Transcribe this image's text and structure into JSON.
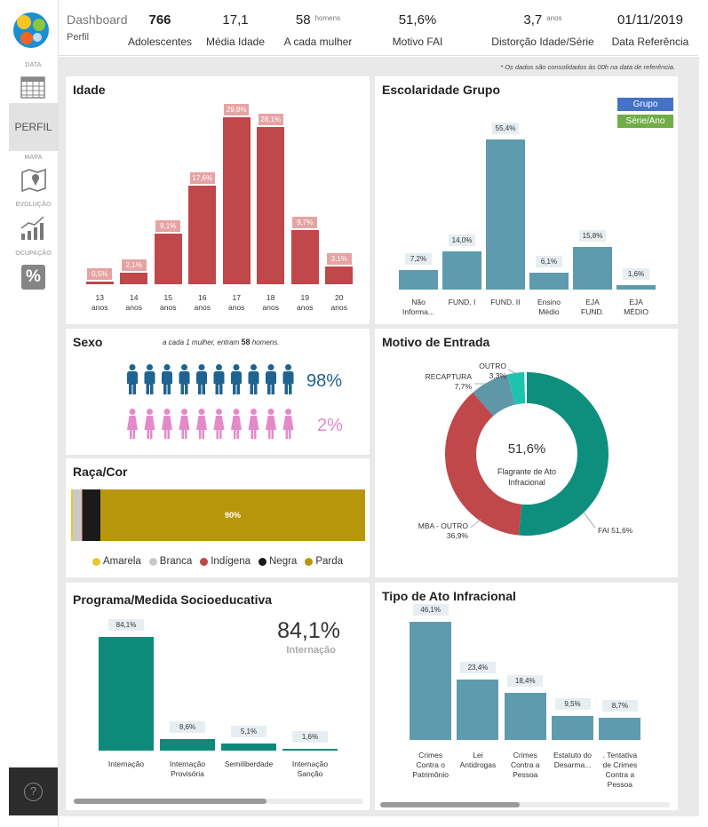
{
  "sidebar": {
    "items": [
      {
        "label": "DATA"
      },
      {
        "label": "PERFIL"
      },
      {
        "label": "MAPA"
      },
      {
        "label": "EVOLUÇÃO"
      },
      {
        "label": "OCUPAÇÃO",
        "icon": "%"
      }
    ],
    "help": "?"
  },
  "header": {
    "title": "Dashboard",
    "subtitle": "Perfil",
    "kpis": [
      {
        "value": "766",
        "label": "Adolescentes"
      },
      {
        "value": "17,1",
        "label": "Média Idade"
      },
      {
        "value": "58",
        "unit": "homens",
        "label": "A cada mulher"
      },
      {
        "value": "51,6%",
        "label": "Motivo FAI"
      },
      {
        "value": "3,7",
        "unit": "anos",
        "label": "Distorção Idade/Série"
      },
      {
        "value": "01/11/2019",
        "label": "Data Referência"
      }
    ]
  },
  "note": "* Os dados são consolidados às 00h na data de referência.",
  "chart_data": [
    {
      "type": "bar",
      "title": "Idade",
      "categories": [
        "13 anos",
        "14 anos",
        "15 anos",
        "16 anos",
        "17 anos",
        "18 anos",
        "19 anos",
        "20 anos"
      ],
      "values": [
        0.5,
        2.1,
        9.1,
        17.6,
        29.8,
        28.1,
        9.7,
        3.1
      ],
      "value_labels": [
        "0,5%",
        "2,1%",
        "9,1%",
        "17,6%",
        "29,8%",
        "28,1%",
        "9,7%",
        "3,1%"
      ],
      "color": "#c0474a"
    },
    {
      "type": "bar",
      "title": "Escolaridade Grupo",
      "categories": [
        "Não Informa...",
        "FUND. I",
        "FUND. II",
        "Ensino Médio",
        "EJA FUND.",
        "EJA MÉDIO"
      ],
      "values": [
        7.2,
        14.0,
        55.4,
        6.1,
        15.8,
        1.6
      ],
      "value_labels": [
        "7,2%",
        "14,0%",
        "55,4%",
        "6,1%",
        "15,8%",
        "1,6%"
      ],
      "color": "#5f9bae",
      "buttons": [
        {
          "label": "Grupo",
          "color": "#4472c4"
        },
        {
          "label": "Série/Ano",
          "color": "#70ad47"
        }
      ]
    },
    {
      "type": "pictogram",
      "title": "Sexo",
      "annotation": {
        "before": "a cada 1 mulher, entram",
        "value": "58",
        "after": "homens."
      },
      "values": [
        98,
        2
      ],
      "value_labels": [
        "98%",
        "2%"
      ],
      "colors": [
        "#1f6391",
        "#e58ac9"
      ]
    },
    {
      "type": "stacked-bar",
      "title": "Raça/Cor",
      "series": [
        {
          "name": "Amarela",
          "color": "#e8c930",
          "values": [
            0.5
          ]
        },
        {
          "name": "Branca",
          "color": "#c9c9c9",
          "values": [
            3
          ]
        },
        {
          "name": "Indígena",
          "color": "#c0474a",
          "values": [
            0.5
          ]
        },
        {
          "name": "Negra",
          "color": "#1a1a1a",
          "values": [
            6
          ]
        },
        {
          "name": "Parda",
          "color": "#b8960c",
          "values": [
            90
          ],
          "value_labels": [
            "90%"
          ]
        }
      ]
    },
    {
      "type": "donut",
      "title": "Motivo de Entrada",
      "categories": [
        "FAI",
        "MBA - OUTRO",
        "RECAPTURA",
        "OUTRO"
      ],
      "values": [
        51.6,
        36.9,
        7.7,
        3.3
      ],
      "value_labels": [
        "51,6%",
        "36,9%",
        "7,7%",
        "3,3%"
      ],
      "colors": [
        "#0e8f7e",
        "#c0474a",
        "#5f96a8",
        "#1ec3b0"
      ],
      "center_label": "Flagrante de Ato Infracional"
    },
    {
      "type": "bar",
      "title": "Programa/Medida Socioeducativa",
      "categories": [
        "Internação",
        "Internação Provisória",
        "Semiliberdade",
        "Internação Sanção"
      ],
      "values": [
        84.1,
        8.6,
        5.1,
        1.6
      ],
      "value_labels": [
        "84,1%",
        "8,6%",
        "5,1%",
        "1,6%"
      ],
      "color": "#0e8a7a"
    },
    {
      "type": "bar",
      "title": "Tipo de Ato Infracional",
      "categories": [
        "Crimes Contra o Patrimônio",
        "Lei Antidrogas",
        "Crimes Contra a Pessoa",
        "Estatuto do Desarma...",
        ". Tentativa de Crimes Contra a Pessoa"
      ],
      "values": [
        46.1,
        23.4,
        18.4,
        9.5,
        8.7
      ],
      "value_labels": [
        "46,1%",
        "23,4%",
        "18,4%",
        "9,5%",
        "8,7%"
      ],
      "color": "#5f9bae"
    }
  ]
}
